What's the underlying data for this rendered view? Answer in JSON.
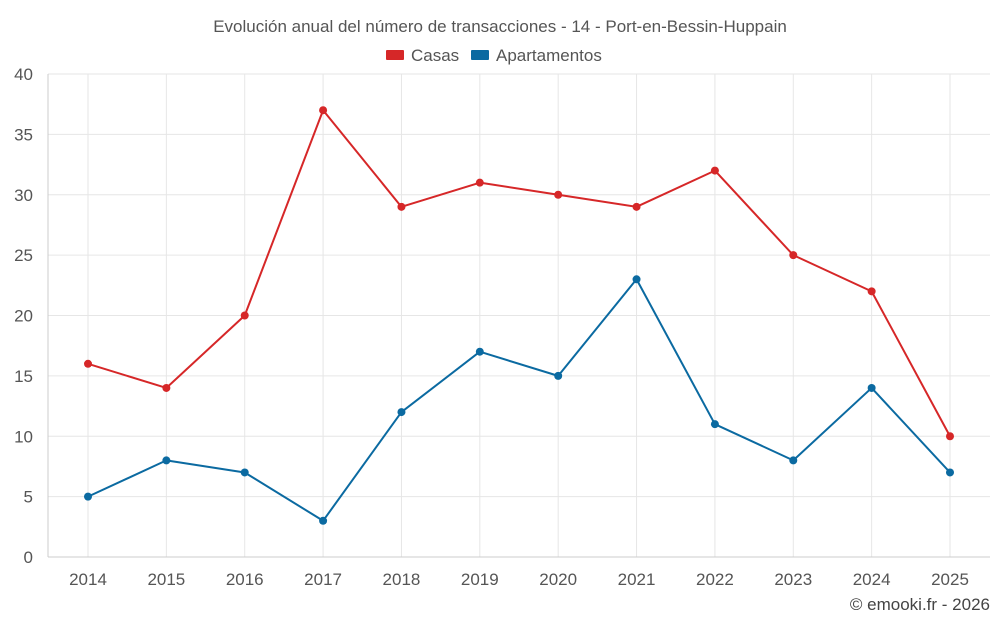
{
  "chart_data": {
    "type": "line",
    "title": "Evolución anual del número de transacciones - 14 - Port-en-Bessin-Huppain",
    "categories": [
      "2014",
      "2015",
      "2016",
      "2017",
      "2018",
      "2019",
      "2020",
      "2021",
      "2022",
      "2023",
      "2024",
      "2025"
    ],
    "series": [
      {
        "name": "Casas",
        "color": "#d62728",
        "values": [
          16,
          14,
          20,
          37,
          29,
          31,
          30,
          29,
          32,
          25,
          22,
          10
        ]
      },
      {
        "name": "Apartamentos",
        "color": "#0b6aa1",
        "values": [
          5,
          8,
          7,
          3,
          12,
          17,
          15,
          23,
          11,
          8,
          14,
          7
        ]
      }
    ],
    "ylim": [
      0,
      40
    ],
    "yticks": [
      0,
      5,
      10,
      15,
      20,
      25,
      30,
      35,
      40
    ],
    "grid": true,
    "legend": "top-center",
    "xlabel": "",
    "ylabel": ""
  },
  "credit": "© emooki.fr - 2026"
}
